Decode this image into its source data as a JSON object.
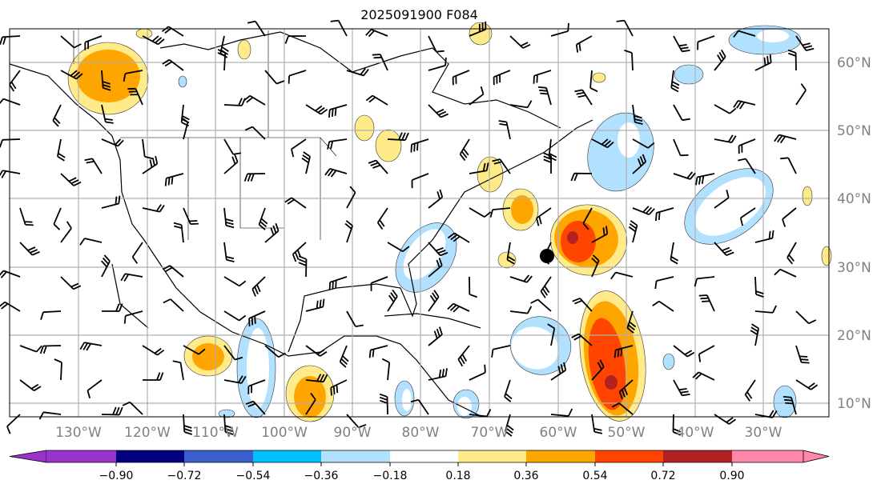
{
  "title": "2025091900 F084",
  "map": {
    "lat_labels": [
      "60°N",
      "50°N",
      "40°N",
      "30°N",
      "20°N",
      "10°N"
    ],
    "lon_labels": [
      "130°W",
      "120°W",
      "110°W",
      "100°W",
      "90°W",
      "80°W",
      "70°W",
      "60°W",
      "50°W",
      "40°W",
      "30°W"
    ],
    "label_color": "#808080",
    "grid_color": "#b0b0b0"
  },
  "colorbar": {
    "ticks": [
      "−0.90",
      "−0.72",
      "−0.54",
      "−0.36",
      "−0.18",
      "0.18",
      "0.36",
      "0.54",
      "0.72",
      "0.90"
    ],
    "colors": [
      "#9933cc",
      "#000080",
      "#3a5fcd",
      "#00bfff",
      "#b2e1ff",
      "#ffffff",
      "#ffeb8a",
      "#ffa500",
      "#ff4500",
      "#b22222",
      "#ff88aa"
    ],
    "extend": "both"
  }
}
